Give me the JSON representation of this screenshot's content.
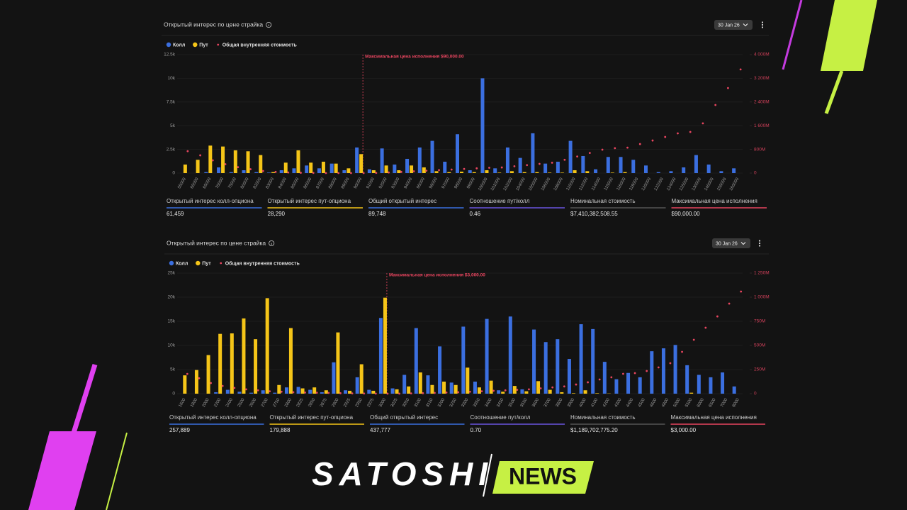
{
  "chart_data": [
    {
      "type": "bar",
      "title": "Открытый интерес по цене страйка",
      "date_filter": "30 Jan 26",
      "categories": [
        "55000",
        "60000",
        "65000",
        "70000",
        "75000",
        "80000",
        "82000",
        "83000",
        "84000",
        "85000",
        "86000",
        "87000",
        "88000",
        "89000",
        "90000",
        "91000",
        "92000",
        "93000",
        "94000",
        "95000",
        "96000",
        "97000",
        "98000",
        "99000",
        "100000",
        "101000",
        "102000",
        "104000",
        "105000",
        "106000",
        "108000",
        "110000",
        "112000",
        "114000",
        "115000",
        "116000",
        "118000",
        "120000",
        "122000",
        "124000",
        "125000",
        "130000",
        "140000",
        "150000",
        "160000"
      ],
      "series": [
        {
          "name": "Колл",
          "color": "#3b6fe0",
          "values": [
            0,
            0,
            100,
            600,
            100,
            300,
            100,
            50,
            300,
            500,
            800,
            500,
            1000,
            300,
            2700,
            400,
            2600,
            900,
            1500,
            2700,
            3400,
            1200,
            4100,
            300,
            10000,
            500,
            2700,
            1600,
            4200,
            1000,
            1200,
            3400,
            1800,
            400,
            1700,
            1700,
            1400,
            800,
            100,
            200,
            600,
            1900,
            900,
            200,
            500
          ]
        },
        {
          "name": "Пут",
          "color": "#f5c518",
          "values": [
            900,
            1400,
            2900,
            2800,
            2400,
            2300,
            1900,
            100,
            1100,
            2400,
            1100,
            1200,
            1000,
            500,
            2000,
            300,
            800,
            300,
            800,
            600,
            200,
            100,
            150,
            100,
            300,
            50,
            200,
            100,
            100,
            50,
            50,
            300,
            200,
            0,
            50,
            100,
            0,
            0,
            0,
            0,
            0,
            0,
            0,
            0,
            0
          ]
        },
        {
          "name": "Общая внутренняя стоимость",
          "color": "#e8455f",
          "type": "scatter",
          "axis": "y2",
          "values": [
            740,
            600,
            430,
            300,
            200,
            130,
            70,
            40,
            20,
            10,
            5,
            0,
            0,
            0,
            0,
            5,
            20,
            40,
            60,
            80,
            100,
            120,
            140,
            160,
            180,
            190,
            230,
            270,
            310,
            350,
            450,
            560,
            680,
            790,
            840,
            860,
            980,
            1100,
            1220,
            1340,
            1390,
            1680,
            2300,
            2870,
            3500
          ]
        }
      ],
      "ylim": [
        0,
        12500
      ],
      "yticks": [
        0,
        {
          "value": 2500,
          "label": "2.5k"
        },
        {
          "value": 5000,
          "label": "5k"
        },
        {
          "value": 7500,
          "label": "7.5k"
        },
        {
          "value": 10000,
          "label": "10k"
        },
        {
          "value": 12500,
          "label": "12.5k"
        }
      ],
      "y2lim": [
        0,
        4000
      ],
      "y2ticks": [
        0,
        {
          "value": 800,
          "label": "800M"
        },
        {
          "value": 1600,
          "label": "1 600M"
        },
        {
          "value": 2400,
          "label": "2 400M"
        },
        {
          "value": 3200,
          "label": "3 200M"
        },
        {
          "value": 4000,
          "label": "4 000M"
        }
      ],
      "grid": true,
      "annotation": {
        "text": "Максимальная цена исполнения $90,000.00",
        "x": "90000",
        "color": "#e8455f"
      },
      "stats": [
        {
          "label": "Открытый интерес колл-опциона",
          "value": "61,459",
          "color": "#3b6fe0"
        },
        {
          "label": "Открытый интерес пут-опциона",
          "value": "28,290",
          "color": "#f5c518"
        },
        {
          "label": "Общий открытый интерес",
          "value": "89,748",
          "color": "#3b6fe0"
        },
        {
          "label": "Соотношение пут/колл",
          "value": "0.46",
          "color": "#6a55e0"
        },
        {
          "label": "Номинальная стоимость",
          "value": "$7,410,382,508.55",
          "color": "#555555"
        },
        {
          "label": "Максимальная цена исполнения",
          "value": "$90,000.00",
          "color": "#e8455f"
        }
      ]
    },
    {
      "type": "bar",
      "title": "Открытый интерес по цене страйка",
      "date_filter": "30 Jan 26",
      "categories": [
        "1600",
        "1800",
        "2000",
        "2200",
        "2400",
        "2500",
        "2600",
        "2700",
        "2750",
        "2800",
        "2825",
        "2850",
        "2875",
        "2900",
        "2925",
        "2950",
        "2975",
        "3000",
        "3025",
        "3050",
        "3100",
        "3150",
        "3200",
        "3250",
        "3300",
        "3350",
        "3400",
        "3450",
        "3500",
        "3550",
        "3600",
        "3700",
        "3800",
        "3900",
        "4000",
        "4100",
        "4200",
        "4300",
        "4400",
        "4500",
        "4600",
        "4800",
        "5000",
        "5500",
        "6000",
        "6500",
        "7000",
        "8000"
      ],
      "series": [
        {
          "name": "Колл",
          "color": "#3b6fe0",
          "values": [
            0,
            0,
            0,
            300,
            800,
            400,
            200,
            700,
            200,
            1300,
            1400,
            800,
            300,
            6500,
            700,
            3400,
            800,
            15700,
            1100,
            3900,
            13600,
            3800,
            9800,
            2300,
            13900,
            2500,
            15500,
            700,
            16000,
            900,
            13300,
            10700,
            11300,
            7200,
            14400,
            13400,
            6600,
            3000,
            4300,
            3400,
            8800,
            9400,
            10100,
            5900,
            3900,
            3400,
            4400,
            1500
          ]
        },
        {
          "name": "Пут",
          "color": "#f5c518",
          "values": [
            3800,
            4900,
            8000,
            12400,
            12500,
            15600,
            11300,
            19800,
            1800,
            13600,
            1100,
            1300,
            700,
            12700,
            600,
            6100,
            600,
            19900,
            900,
            1500,
            4400,
            1800,
            2500,
            1800,
            5400,
            1300,
            2700,
            400,
            1600,
            500,
            2600,
            800,
            300,
            100,
            700,
            100,
            50,
            0,
            0,
            0,
            0,
            0,
            0,
            200,
            0,
            0,
            0,
            0
          ]
        },
        {
          "name": "Общая внутренняя стоимость",
          "color": "#e8455f",
          "type": "scatter",
          "axis": "y2",
          "values": [
            205,
            160,
            110,
            80,
            60,
            45,
            35,
            25,
            20,
            15,
            12,
            10,
            8,
            5,
            3,
            2,
            1,
            0,
            1,
            3,
            5,
            8,
            12,
            15,
            20,
            25,
            30,
            35,
            40,
            45,
            55,
            65,
            75,
            95,
            118,
            147,
            170,
            206,
            213,
            235,
            272,
            316,
            434,
            559,
            684,
            801,
            934,
            1059
          ]
        }
      ],
      "ylim": [
        0,
        25000
      ],
      "yticks": [
        0,
        {
          "value": 5000,
          "label": "5k"
        },
        {
          "value": 10000,
          "label": "10k"
        },
        {
          "value": 15000,
          "label": "15k"
        },
        {
          "value": 20000,
          "label": "20k"
        },
        {
          "value": 25000,
          "label": "25k"
        }
      ],
      "y2lim": [
        0,
        1250
      ],
      "y2ticks": [
        0,
        {
          "value": 250,
          "label": "250M"
        },
        {
          "value": 500,
          "label": "500M"
        },
        {
          "value": 750,
          "label": "750M"
        },
        {
          "value": 1000,
          "label": "1 000M"
        },
        {
          "value": 1250,
          "label": "1 250M"
        }
      ],
      "grid": true,
      "annotation": {
        "text": "Максимальная цена исполнения $3,000.00",
        "x": "3000",
        "color": "#e8455f"
      },
      "stats": [
        {
          "label": "Открытый интерес колл-опциона",
          "value": "257,889",
          "color": "#3b6fe0"
        },
        {
          "label": "Открытый интерес пут-опциона",
          "value": "179,888",
          "color": "#f5c518"
        },
        {
          "label": "Общий открытый интерес",
          "value": "437,777",
          "color": "#3b6fe0"
        },
        {
          "label": "Соотношение пут/колл",
          "value": "0.70",
          "color": "#6a55e0"
        },
        {
          "label": "Номинальная стоимость",
          "value": "$1,189,702,775.20",
          "color": "#555555"
        },
        {
          "label": "Максимальная цена исполнения",
          "value": "$3,000.00",
          "color": "#e8455f"
        }
      ]
    }
  ],
  "logo": {
    "left": "SATOSHI",
    "right": "NEWS"
  }
}
